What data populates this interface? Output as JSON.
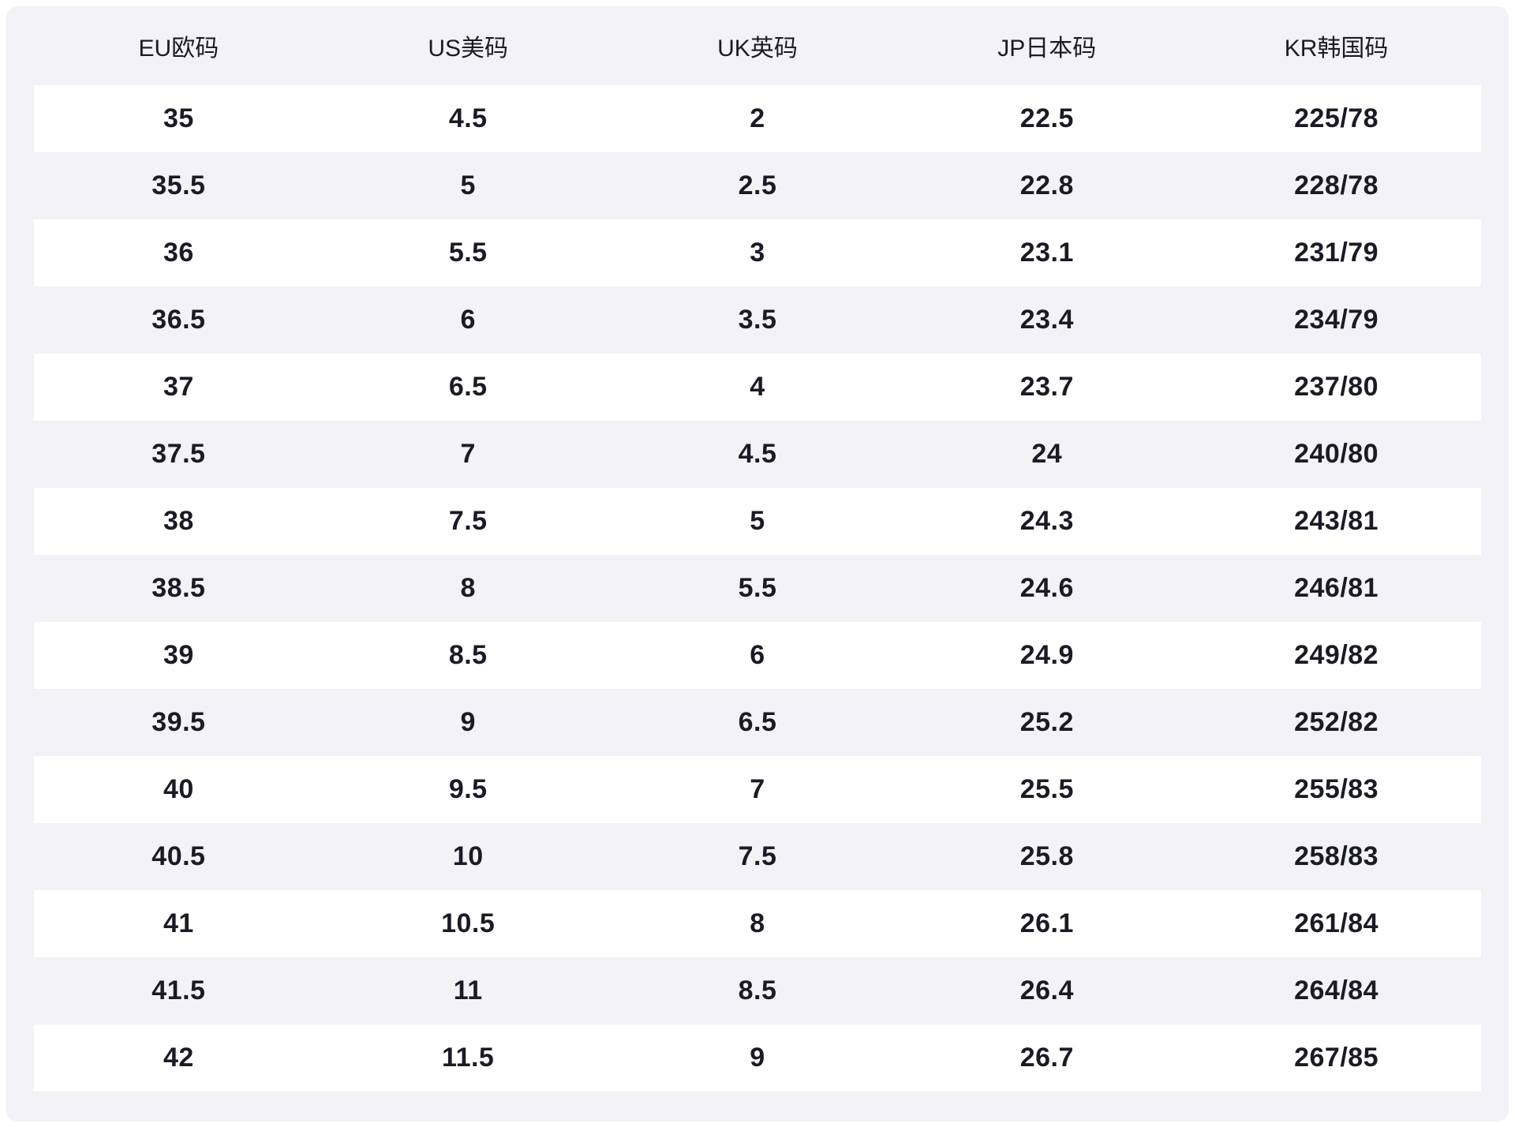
{
  "chart_data": {
    "type": "table",
    "columns": [
      "EU欧码",
      "US美码",
      "UK英码",
      "JP日本码",
      "KR韩国码"
    ],
    "column_keys": [
      "eu",
      "us",
      "uk",
      "jp",
      "kr"
    ],
    "rows": [
      [
        "35",
        "4.5",
        "2",
        "22.5",
        "225/78"
      ],
      [
        "35.5",
        "5",
        "2.5",
        "22.8",
        "228/78"
      ],
      [
        "36",
        "5.5",
        "3",
        "23.1",
        "231/79"
      ],
      [
        "36.5",
        "6",
        "3.5",
        "23.4",
        "234/79"
      ],
      [
        "37",
        "6.5",
        "4",
        "23.7",
        "237/80"
      ],
      [
        "37.5",
        "7",
        "4.5",
        "24",
        "240/80"
      ],
      [
        "38",
        "7.5",
        "5",
        "24.3",
        "243/81"
      ],
      [
        "38.5",
        "8",
        "5.5",
        "24.6",
        "246/81"
      ],
      [
        "39",
        "8.5",
        "6",
        "24.9",
        "249/82"
      ],
      [
        "39.5",
        "9",
        "6.5",
        "25.2",
        "252/82"
      ],
      [
        "40",
        "9.5",
        "7",
        "25.5",
        "255/83"
      ],
      [
        "40.5",
        "10",
        "7.5",
        "25.8",
        "258/83"
      ],
      [
        "41",
        "10.5",
        "8",
        "26.1",
        "261/84"
      ],
      [
        "41.5",
        "11",
        "8.5",
        "26.4",
        "264/84"
      ],
      [
        "42",
        "11.5",
        "9",
        "26.7",
        "267/85"
      ]
    ],
    "title": "",
    "layout": {
      "striped": true,
      "stripe_pattern": "odd-rows-white",
      "grid": false
    }
  },
  "colors": {
    "page_bg": "#ffffff",
    "card_bg": "#f2f2f7",
    "stripe_bg": "#ffffff",
    "text": "#1b1b25"
  }
}
